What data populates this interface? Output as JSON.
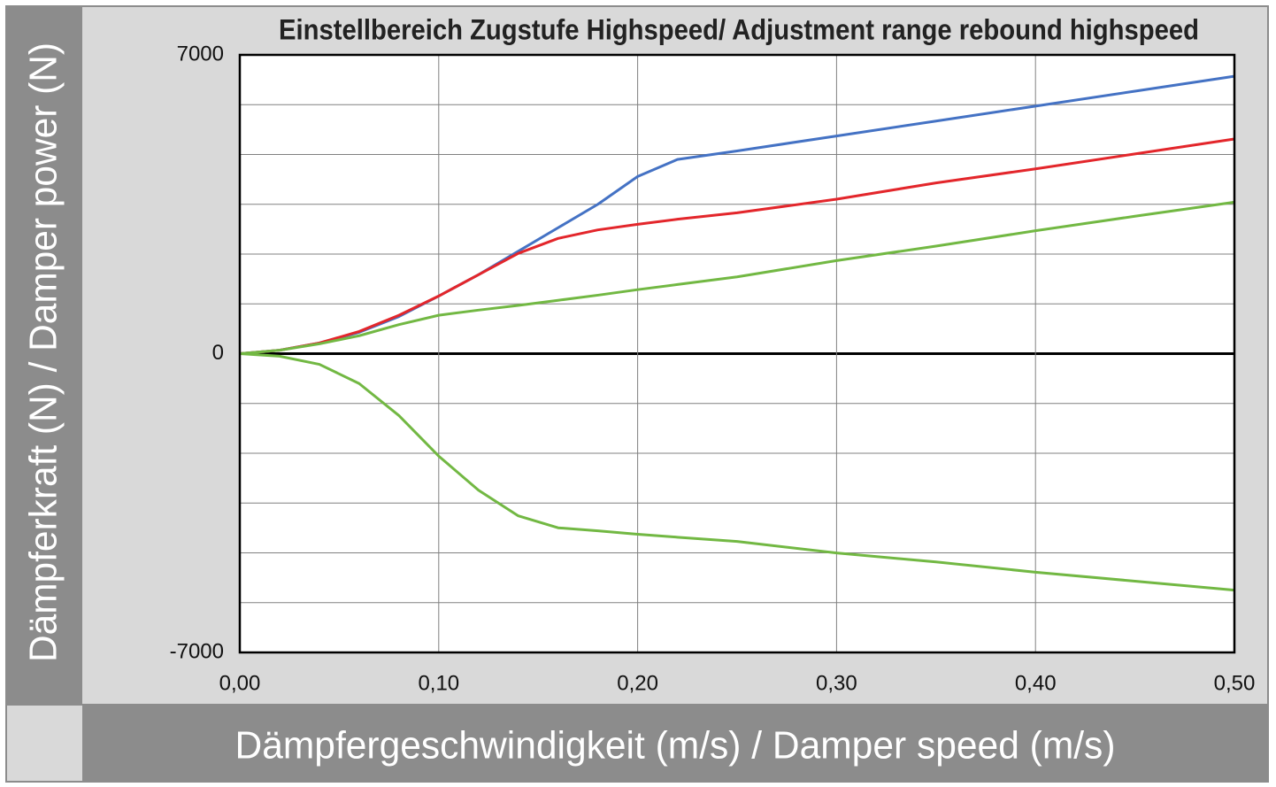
{
  "chart_data": {
    "type": "line",
    "title": "Einstellbereich Zugstufe Highspeed/ Adjustment range rebound highspeed",
    "x_label": "Dämpfergeschwindigkeit (m/s) / Damper speed (m/s)",
    "y_label": "Dämpferkraft (N) / Damper power (N)",
    "x": [
      0,
      0.02,
      0.04,
      0.06,
      0.08,
      0.1,
      0.12,
      0.14,
      0.16,
      0.18,
      0.2,
      0.22,
      0.25,
      0.3,
      0.35,
      0.4,
      0.45,
      0.5
    ],
    "series": [
      {
        "color": "#4472c4",
        "values": [
          0,
          80,
          250,
          500,
          870,
          1350,
          1850,
          2400,
          2950,
          3500,
          4150,
          4550,
          4750,
          5100,
          5450,
          5800,
          6150,
          6500
        ]
      },
      {
        "color": "#e3262b",
        "values": [
          0,
          80,
          250,
          520,
          900,
          1350,
          1850,
          2350,
          2700,
          2900,
          3030,
          3150,
          3300,
          3620,
          4000,
          4330,
          4680,
          5030
        ]
      },
      {
        "color": "#72b843",
        "values": [
          0,
          80,
          230,
          420,
          680,
          900,
          1020,
          1130,
          1250,
          1370,
          1500,
          1620,
          1800,
          2180,
          2520,
          2880,
          3220,
          3550
        ]
      },
      {
        "color": "#72b843",
        "values": [
          0,
          -60,
          -250,
          -700,
          -1450,
          -2400,
          -3200,
          -3800,
          -4080,
          -4150,
          -4230,
          -4300,
          -4400,
          -4670,
          -4880,
          -5120,
          -5330,
          -5540
        ]
      }
    ],
    "xlim": [
      0,
      0.5
    ],
    "xticks": [
      {
        "value": 0,
        "label": "0,00"
      },
      {
        "value": 0.1,
        "label": "0,10"
      },
      {
        "value": 0.2,
        "label": "0,20"
      },
      {
        "value": 0.3,
        "label": "0,30"
      },
      {
        "value": 0.4,
        "label": "0,40"
      },
      {
        "value": 0.5,
        "label": "0,50"
      }
    ],
    "ylim": [
      -7000,
      7000
    ],
    "yticks": [
      -7000,
      0,
      7000
    ],
    "y_minor_ticks": [
      -5833.3,
      -4666.7,
      -3500,
      -2333.3,
      -1166.7,
      1166.7,
      2333.3,
      3500,
      4666.7,
      5833.3
    ],
    "grid": true
  }
}
